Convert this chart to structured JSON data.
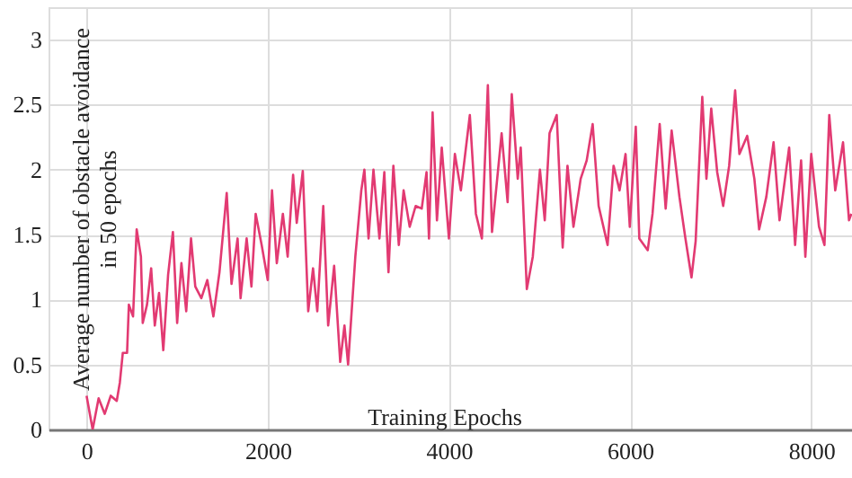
{
  "chart_data": {
    "type": "line",
    "xlabel": "Training Epochs",
    "ylabel": "Average number of obstacle avoidance in 50 epochs",
    "xlim": [
      -420,
      8450
    ],
    "ylim": [
      0,
      3.25
    ],
    "xticks": [
      0,
      2000,
      4000,
      6000,
      8000
    ],
    "yticks": [
      0,
      0.5,
      1,
      1.5,
      2,
      2.5,
      3
    ],
    "grid": true,
    "marker": "none",
    "line_style": "solid",
    "series": [
      {
        "color": "#e23a72",
        "x": [
          0,
          67,
          133,
          200,
          267,
          333,
          367,
          400,
          447,
          467,
          513,
          553,
          600,
          620,
          667,
          713,
          753,
          800,
          847,
          900,
          953,
          1000,
          1047,
          1100,
          1153,
          1200,
          1267,
          1333,
          1400,
          1467,
          1547,
          1600,
          1667,
          1700,
          1767,
          1820,
          1867,
          1933,
          2000,
          2047,
          2100,
          2167,
          2220,
          2280,
          2320,
          2387,
          2447,
          2500,
          2547,
          2613,
          2667,
          2733,
          2800,
          2847,
          2887,
          2967,
          3033,
          3067,
          3113,
          3167,
          3233,
          3287,
          3333,
          3387,
          3447,
          3500,
          3567,
          3633,
          3700,
          3753,
          3780,
          3820,
          3868,
          3921,
          4000,
          4066,
          4132,
          4231,
          4298,
          4364,
          4430,
          4476,
          4582,
          4648,
          4694,
          4760,
          4793,
          4860,
          4926,
          5005,
          5058,
          5111,
          5190,
          5256,
          5309,
          5375,
          5455,
          5521,
          5587,
          5653,
          5752,
          5818,
          5884,
          5950,
          5997,
          6063,
          6102,
          6195,
          6248,
          6327,
          6393,
          6459,
          6545,
          6611,
          6678,
          6724,
          6797,
          6843,
          6896,
          6962,
          7028,
          7094,
          7160,
          7207,
          7293,
          7372,
          7425,
          7504,
          7584,
          7650,
          7756,
          7822,
          7888,
          7935,
          8000,
          8086,
          8146,
          8199,
          8265,
          8351,
          8417,
          8443
        ],
        "values": [
          0.26,
          0.0,
          0.24,
          0.12,
          0.26,
          0.22,
          0.36,
          0.59,
          0.59,
          0.96,
          0.87,
          1.54,
          1.33,
          0.82,
          0.96,
          1.24,
          0.8,
          1.05,
          0.61,
          1.19,
          1.52,
          0.82,
          1.28,
          0.91,
          1.47,
          1.1,
          1.01,
          1.15,
          0.87,
          1.21,
          1.82,
          1.12,
          1.47,
          1.01,
          1.47,
          1.1,
          1.66,
          1.42,
          1.15,
          1.84,
          1.28,
          1.66,
          1.33,
          1.96,
          1.59,
          1.99,
          0.91,
          1.24,
          0.91,
          1.72,
          0.8,
          1.26,
          0.52,
          0.8,
          0.5,
          1.33,
          1.84,
          2.0,
          1.47,
          2.0,
          1.47,
          1.98,
          1.21,
          2.03,
          1.42,
          1.84,
          1.56,
          1.72,
          1.7,
          1.98,
          1.47,
          2.44,
          1.61,
          2.17,
          1.47,
          2.12,
          1.84,
          2.42,
          1.66,
          1.47,
          2.65,
          1.52,
          2.28,
          1.75,
          2.58,
          1.93,
          2.17,
          1.08,
          1.33,
          2.0,
          1.61,
          2.28,
          2.42,
          1.4,
          2.03,
          1.56,
          1.93,
          2.07,
          2.35,
          1.72,
          1.42,
          2.03,
          1.84,
          2.12,
          1.56,
          2.33,
          1.47,
          1.38,
          1.66,
          2.35,
          1.7,
          2.3,
          1.79,
          1.47,
          1.17,
          1.45,
          2.56,
          1.93,
          2.47,
          1.98,
          1.72,
          2.03,
          2.61,
          2.12,
          2.26,
          1.93,
          1.54,
          1.79,
          2.21,
          1.61,
          2.17,
          1.42,
          2.07,
          1.33,
          2.12,
          1.56,
          1.42,
          2.42,
          1.84,
          2.21,
          1.61,
          1.66
        ]
      }
    ]
  }
}
